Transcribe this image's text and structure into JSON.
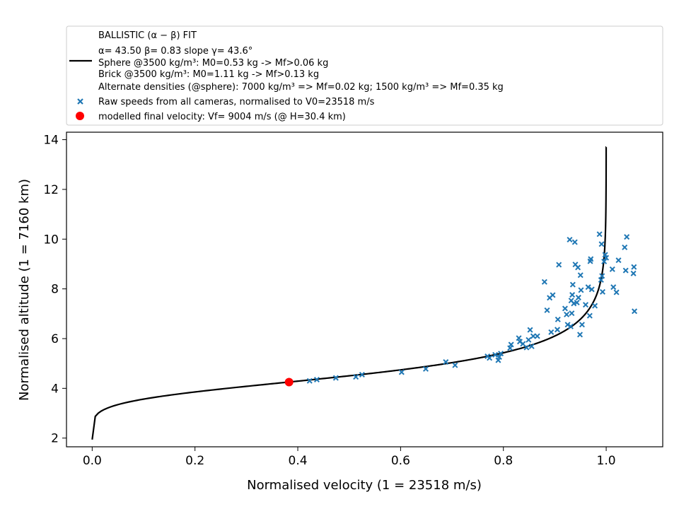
{
  "chart_data": {
    "type": "scatter",
    "xlabel": "Normalised velocity (1 = 23518 m/s)",
    "ylabel": "Normalised altitude (1 = 7160 km)",
    "xlim": [
      -0.05,
      1.11
    ],
    "ylim": [
      1.65,
      14.3
    ],
    "xticks": [
      0.0,
      0.2,
      0.4,
      0.6,
      0.8,
      1.0
    ],
    "xtick_labels": [
      "0.0",
      "0.2",
      "0.4",
      "0.6",
      "0.8",
      "1.0"
    ],
    "yticks": [
      2,
      4,
      6,
      8,
      10,
      12,
      14
    ],
    "ytick_labels": [
      "2",
      "4",
      "6",
      "8",
      "10",
      "12",
      "14"
    ],
    "grid": false,
    "legend_placement": "top, outside above the axes",
    "legend": {
      "fit_lines": [
        "BALLISTIC (α − β) FIT",
        "α= 43.50     β= 0.83     slope γ= 43.6°",
        " Sphere @3500 kg/m³: M0=0.53 kg -> Mf>0.06 kg",
        " Brick @3500 kg/m³: M0=1.11 kg -> Mf>0.13 kg",
        "Alternate densities (@sphere): 7000 kg/m³ => Mf=0.02 kg; 1500 kg/m³ => Mf=0.35 kg"
      ],
      "scatter_label": "Raw speeds from all cameras, normalised to V0=23518 m/s",
      "final_label": "modelled final velocity: Vf= 9004 m/s (@ H=30.4 km)"
    },
    "fit_curve": {
      "alpha": 43.5,
      "beta": 0.83,
      "color": "#000000",
      "v_range": [
        0.0,
        0.99999
      ]
    },
    "raw_speeds": {
      "color": "#1f77b4",
      "marker": "x",
      "points": [
        [
          0.423,
          4.3
        ],
        [
          0.437,
          4.35
        ],
        [
          0.474,
          4.42
        ],
        [
          0.513,
          4.46
        ],
        [
          0.525,
          4.55
        ],
        [
          0.602,
          4.65
        ],
        [
          0.649,
          4.78
        ],
        [
          0.688,
          5.06
        ],
        [
          0.706,
          4.93
        ],
        [
          0.769,
          5.29
        ],
        [
          0.773,
          5.22
        ],
        [
          0.784,
          5.35
        ],
        [
          0.79,
          5.13
        ],
        [
          0.792,
          5.26
        ],
        [
          0.795,
          5.4
        ],
        [
          0.813,
          5.62
        ],
        [
          0.815,
          5.76
        ],
        [
          0.83,
          6.02
        ],
        [
          0.832,
          5.88
        ],
        [
          0.838,
          5.79
        ],
        [
          0.845,
          5.64
        ],
        [
          0.849,
          5.95
        ],
        [
          0.852,
          6.35
        ],
        [
          0.855,
          5.69
        ],
        [
          0.858,
          6.1
        ],
        [
          0.866,
          6.1
        ],
        [
          0.88,
          8.28
        ],
        [
          0.885,
          7.14
        ],
        [
          0.89,
          7.64
        ],
        [
          0.893,
          6.26
        ],
        [
          0.896,
          7.75
        ],
        [
          0.905,
          6.36
        ],
        [
          0.906,
          6.77
        ],
        [
          0.908,
          8.97
        ],
        [
          0.92,
          7.21
        ],
        [
          0.923,
          6.97
        ],
        [
          0.925,
          6.56
        ],
        [
          0.929,
          9.98
        ],
        [
          0.931,
          6.49
        ],
        [
          0.932,
          7.53
        ],
        [
          0.933,
          7.02
        ],
        [
          0.934,
          7.76
        ],
        [
          0.935,
          8.17
        ],
        [
          0.937,
          7.41
        ],
        [
          0.939,
          9.88
        ],
        [
          0.94,
          8.98
        ],
        [
          0.943,
          7.45
        ],
        [
          0.945,
          8.86
        ],
        [
          0.946,
          7.65
        ],
        [
          0.949,
          6.16
        ],
        [
          0.95,
          8.55
        ],
        [
          0.951,
          7.95
        ],
        [
          0.953,
          6.56
        ],
        [
          0.96,
          7.36
        ],
        [
          0.965,
          8.07
        ],
        [
          0.968,
          6.92
        ],
        [
          0.969,
          9.11
        ],
        [
          0.97,
          9.2
        ],
        [
          0.972,
          7.98
        ],
        [
          0.978,
          7.32
        ],
        [
          0.987,
          10.2
        ],
        [
          0.99,
          8.36
        ],
        [
          0.991,
          9.8
        ],
        [
          0.992,
          8.52
        ],
        [
          0.993,
          7.88
        ],
        [
          0.996,
          9.1
        ],
        [
          0.998,
          9.37
        ],
        [
          1.0,
          9.25
        ],
        [
          1.012,
          8.79
        ],
        [
          1.014,
          8.07
        ],
        [
          1.02,
          7.86
        ],
        [
          1.024,
          9.15
        ],
        [
          1.038,
          8.74
        ],
        [
          1.04,
          10.09
        ],
        [
          1.036,
          9.67
        ],
        [
          1.054,
          8.88
        ],
        [
          1.053,
          8.62
        ],
        [
          1.055,
          7.1
        ]
      ]
    },
    "final_velocity_point": {
      "color": "#ff0000",
      "x": 0.383,
      "y": 4.25
    }
  }
}
